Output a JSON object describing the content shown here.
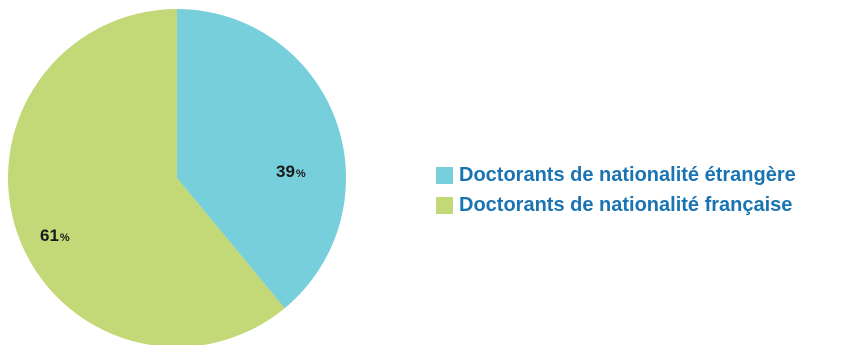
{
  "chart_data": {
    "type": "pie",
    "slices": [
      {
        "label": "Doctorants de nationalité étrangère",
        "value": 39,
        "value_text": "39",
        "unit": "%",
        "color": "#77cfdb"
      },
      {
        "label": "Doctorants de nationalité française",
        "value": 61,
        "value_text": "61",
        "unit": "%",
        "color": "#c3d876"
      }
    ],
    "start_angle": "12 o'clock",
    "direction": "clockwise",
    "legend_position": "right",
    "legend_text_color": "#1a74b3"
  }
}
